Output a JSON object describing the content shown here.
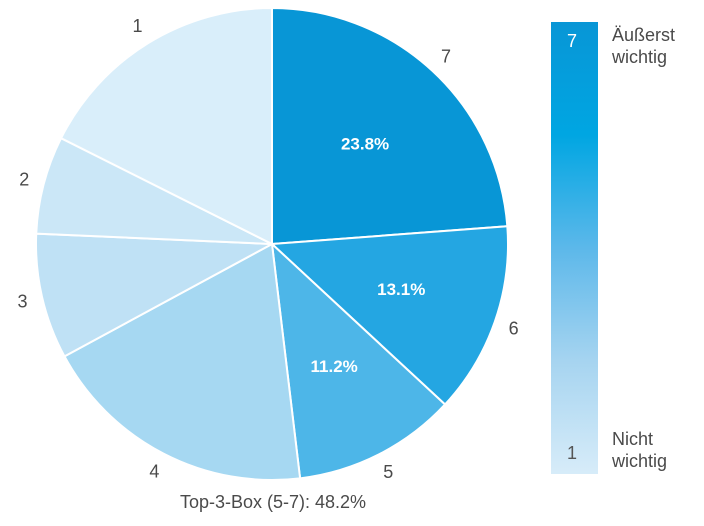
{
  "chart_data": {
    "type": "pie",
    "categories": [
      "7",
      "6",
      "5",
      "4",
      "3",
      "2",
      "1"
    ],
    "values": [
      23.8,
      13.1,
      11.2,
      19.0,
      8.6,
      6.7,
      17.6
    ],
    "value_labels": [
      "23.8%",
      "13.1%",
      "11.2%",
      "",
      "",
      "",
      ""
    ],
    "colors": [
      "#0896d6",
      "#24a6e2",
      "#4db6e8",
      "#a6d8f2",
      "#bfe1f5",
      "#cbe7f7",
      "#d9eefa"
    ],
    "footer": "Top-3-Box (5-7): 48.2%"
  },
  "legend": {
    "top_value": "7",
    "top_label_line1": "Äußerst",
    "top_label_line2": "wichtig",
    "bottom_value": "1",
    "bottom_label_line1": "Nicht",
    "bottom_label_line2": "wichtig"
  }
}
